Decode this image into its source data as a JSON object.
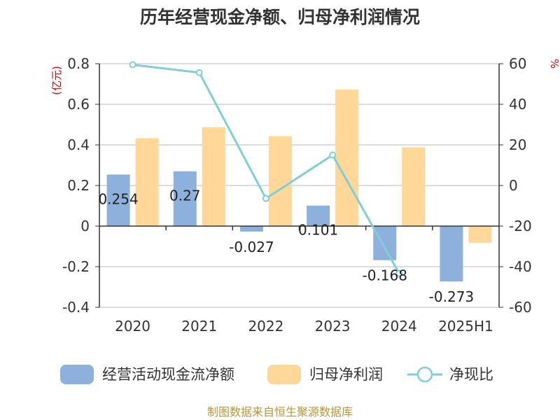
{
  "colors": {
    "cash_bar": "#8eb0dd",
    "profit_bar": "#fed799",
    "ratio_line": "#80ced6",
    "grid": "#bbbbbb",
    "axis": "#333333",
    "unit_label": "#dd0000",
    "source": "#b8953a"
  },
  "chart_data": {
    "type": "bar",
    "title": "历年经营现金净额、归母净利润情况",
    "categories": [
      "2020",
      "2021",
      "2022",
      "2023",
      "2024",
      "2025H1"
    ],
    "y_left": {
      "label": "(亿元)",
      "range": [
        -0.4,
        0.8
      ],
      "ticks": [
        "-0.4",
        "-0.2",
        "0",
        "0.2",
        "0.4",
        "0.6",
        "0.8"
      ]
    },
    "y_right": {
      "label": "%",
      "range": [
        -60,
        60
      ],
      "ticks": [
        "-60",
        "-40",
        "-20",
        "0",
        "20",
        "40",
        "60"
      ]
    },
    "grid": true,
    "legend_position": "bottom",
    "series": [
      {
        "name": "经营活动现金流净额",
        "type": "bar",
        "axis": "left",
        "values": [
          0.254,
          0.27,
          -0.027,
          0.101,
          -0.168,
          -0.273
        ],
        "labels": [
          "0.254",
          "0.27",
          "-0.027",
          "0.101",
          "-0.168",
          "-0.273"
        ]
      },
      {
        "name": "归母净利润",
        "type": "bar",
        "axis": "left",
        "values": [
          0.433,
          0.487,
          0.443,
          0.673,
          0.388,
          -0.082
        ]
      },
      {
        "name": "净现比",
        "type": "line",
        "axis": "right",
        "values": [
          59.5,
          55.6,
          -6.4,
          15,
          -43.3,
          null
        ]
      }
    ]
  },
  "footer": {
    "source": "制图数据来自恒生聚源数据库"
  }
}
